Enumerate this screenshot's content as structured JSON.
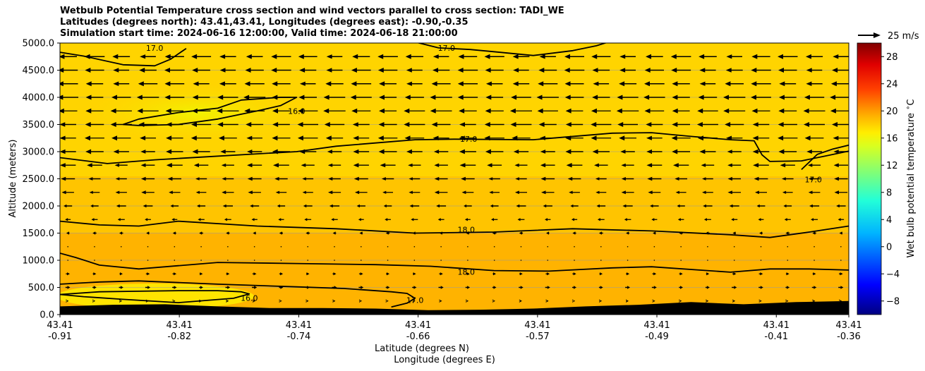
{
  "chart_data": {
    "type": "heatmap",
    "title_lines": [
      "Wetbulb Potential Temperature cross section and wind vectors parallel to cross section: TADI_WE",
      "Latitudes (degrees north): 43.41,43.41, Longitudes (degrees east): -0.90,-0.35",
      "Simulation start time: 2024-06-16 12:00:00, Valid time: 2024-06-18 21:00:00"
    ],
    "ylabel": "Altitude (meters)",
    "xlabel_lat": "Latitude (degrees N)",
    "xlabel_lon": "Longitude (degrees E)",
    "ylim": [
      0,
      5000
    ],
    "yticks": [
      "0.0",
      "500.0",
      "1000.0",
      "1500.0",
      "2000.0",
      "2500.0",
      "3000.0",
      "3500.0",
      "4000.0",
      "4500.0",
      "5000.0"
    ],
    "xtick_lat": [
      "43.41",
      "43.41",
      "43.41",
      "43.41",
      "43.41",
      "43.41",
      "43.41",
      "43.41"
    ],
    "xtick_lon": [
      "-0.91",
      "-0.82",
      "-0.74",
      "-0.66",
      "-0.57",
      "-0.49",
      "-0.41",
      "-0.36"
    ],
    "xtick_pos": [
      0,
      0.1513,
      0.3027,
      0.454,
      0.6054,
      0.7567,
      0.9081,
      1.0
    ],
    "colorbar": {
      "label": "Wet bulb potential temperature $^\\circ$C",
      "min": -10,
      "max": 30,
      "ticks": [
        "28",
        "24",
        "20",
        "16",
        "12",
        "8",
        "4",
        "0",
        "−4",
        "−8"
      ],
      "tick_values": [
        28,
        24,
        20,
        16,
        12,
        8,
        4,
        0,
        -4,
        -8
      ]
    },
    "quiver_key_label": "25 m/s",
    "field_colors": {
      "16": "#ffee00",
      "17": "#ffd400",
      "18": "#ffb300"
    },
    "terrain_height_m": [
      150,
      180,
      190,
      150,
      120,
      120,
      110,
      80,
      90,
      110,
      150,
      180,
      230,
      190,
      230,
      250
    ],
    "contours": [
      {
        "label": "18.0",
        "label_pos": [
          0.515,
          780
        ],
        "points": [
          [
            0,
            1130
          ],
          [
            0.02,
            1050
          ],
          [
            0.05,
            910
          ],
          [
            0.1,
            840
          ],
          [
            0.15,
            900
          ],
          [
            0.2,
            960
          ],
          [
            0.3,
            940
          ],
          [
            0.4,
            920
          ],
          [
            0.47,
            890
          ],
          [
            0.55,
            810
          ],
          [
            0.62,
            800
          ],
          [
            0.7,
            860
          ],
          [
            0.75,
            880
          ],
          [
            0.85,
            780
          ],
          [
            0.9,
            840
          ],
          [
            0.95,
            840
          ],
          [
            1.0,
            820
          ]
        ]
      },
      {
        "label": "18.0",
        "label_pos": [
          0.515,
          1560
        ],
        "points": [
          [
            0,
            1720
          ],
          [
            0.05,
            1650
          ],
          [
            0.1,
            1630
          ],
          [
            0.15,
            1720
          ],
          [
            0.25,
            1630
          ],
          [
            0.35,
            1580
          ],
          [
            0.45,
            1500
          ],
          [
            0.55,
            1520
          ],
          [
            0.65,
            1580
          ],
          [
            0.75,
            1540
          ],
          [
            0.85,
            1470
          ],
          [
            0.9,
            1420
          ],
          [
            0.95,
            1520
          ],
          [
            1.0,
            1630
          ]
        ]
      },
      {
        "label": "17.0",
        "label_pos": [
          0.518,
          3230
        ],
        "points": [
          [
            0,
            2890
          ],
          [
            0.06,
            2780
          ],
          [
            0.12,
            2850
          ],
          [
            0.18,
            2900
          ],
          [
            0.25,
            2960
          ],
          [
            0.3,
            3000
          ],
          [
            0.35,
            3100
          ],
          [
            0.4,
            3160
          ],
          [
            0.45,
            3220
          ],
          [
            0.5,
            3230
          ],
          [
            0.6,
            3220
          ],
          [
            0.7,
            3340
          ],
          [
            0.75,
            3350
          ],
          [
            0.8,
            3280
          ],
          [
            0.85,
            3220
          ],
          [
            0.88,
            3200
          ],
          [
            0.89,
            2940
          ],
          [
            0.9,
            2820
          ],
          [
            0.94,
            2830
          ],
          [
            0.97,
            2920
          ],
          [
            1.0,
            3010
          ]
        ]
      },
      {
        "label": "17.0",
        "label_pos": [
          0.955,
          2480
        ],
        "points": [
          [
            0.94,
            2670
          ],
          [
            0.96,
            2950
          ],
          [
            0.98,
            3050
          ],
          [
            1.0,
            3120
          ]
        ]
      },
      {
        "label": "17.0",
        "label_pos": [
          0.12,
          4900
        ],
        "points": [
          [
            0,
            4830
          ],
          [
            0.03,
            4760
          ],
          [
            0.08,
            4600
          ],
          [
            0.12,
            4580
          ],
          [
            0.14,
            4700
          ],
          [
            0.16,
            4900
          ]
        ]
      },
      {
        "label": "17.0",
        "label_pos": [
          0.49,
          4900
        ],
        "points": [
          [
            0.45,
            5020
          ],
          [
            0.48,
            4910
          ],
          [
            0.52,
            4880
          ],
          [
            0.55,
            4840
          ],
          [
            0.6,
            4770
          ],
          [
            0.65,
            4860
          ],
          [
            0.68,
            4950
          ],
          [
            0.7,
            5040
          ]
        ]
      },
      {
        "label": "16.0",
        "label_pos": [
          0.3,
          3740
        ],
        "points": [
          [
            0.08,
            3500
          ],
          [
            0.1,
            3600
          ],
          [
            0.15,
            3720
          ],
          [
            0.2,
            3800
          ],
          [
            0.23,
            3950
          ],
          [
            0.28,
            4000
          ],
          [
            0.3,
            4000
          ],
          [
            0.28,
            3850
          ],
          [
            0.25,
            3750
          ],
          [
            0.2,
            3600
          ],
          [
            0.15,
            3500
          ],
          [
            0.1,
            3480
          ],
          [
            0.08,
            3500
          ]
        ]
      },
      {
        "label": "16.0",
        "label_pos": [
          0.24,
          300
        ],
        "points": [
          [
            0,
            370
          ],
          [
            0.05,
            420
          ],
          [
            0.1,
            430
          ],
          [
            0.15,
            440
          ],
          [
            0.2,
            440
          ],
          [
            0.23,
            420
          ],
          [
            0.24,
            380
          ],
          [
            0.22,
            300
          ],
          [
            0.15,
            220
          ],
          [
            0.08,
            280
          ],
          [
            0.03,
            330
          ],
          [
            0,
            370
          ]
        ]
      },
      {
        "label": "17.0",
        "label_pos": [
          0.45,
          260
        ],
        "points": [
          [
            0,
            560
          ],
          [
            0.05,
            600
          ],
          [
            0.1,
            620
          ],
          [
            0.2,
            560
          ],
          [
            0.3,
            510
          ],
          [
            0.36,
            480
          ],
          [
            0.42,
            420
          ],
          [
            0.44,
            390
          ],
          [
            0.45,
            300
          ],
          [
            0.44,
            210
          ],
          [
            0.42,
            140
          ]
        ]
      }
    ],
    "wind_rows": [
      {
        "alt": 4750,
        "u": -20
      },
      {
        "alt": 4500,
        "u": -20
      },
      {
        "alt": 4250,
        "u": -20
      },
      {
        "alt": 4000,
        "u": -22
      },
      {
        "alt": 3750,
        "u": -22
      },
      {
        "alt": 3500,
        "u": -21
      },
      {
        "alt": 3250,
        "u": -20
      },
      {
        "alt": 3000,
        "u": -18
      },
      {
        "alt": 2750,
        "u": -16
      },
      {
        "alt": 2500,
        "u": -14
      },
      {
        "alt": 2250,
        "u": -13
      },
      {
        "alt": 2000,
        "u": -10
      },
      {
        "alt": 1750,
        "u": -7
      },
      {
        "alt": 1500,
        "u": -4
      },
      {
        "alt": 1250,
        "u": -1
      },
      {
        "alt": 1000,
        "u": 1
      },
      {
        "alt": 750,
        "u": 4
      },
      {
        "alt": 500,
        "u": 5
      },
      {
        "alt": 250,
        "u": 2
      }
    ],
    "wind_cols": 30
  }
}
